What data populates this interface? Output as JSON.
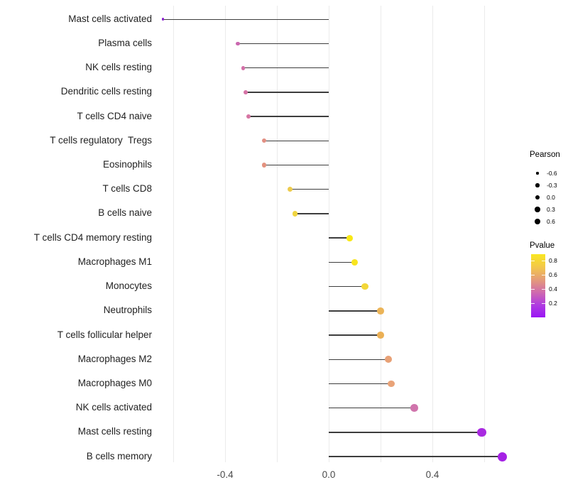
{
  "chart_data": {
    "type": "lollipop",
    "orientation": "horizontal",
    "title": "",
    "xlabel": "",
    "ylabel": "",
    "x_axis": {
      "lim": [
        -0.69,
        0.73
      ],
      "gridlines": [
        -0.6,
        -0.4,
        -0.2,
        0.0,
        0.2,
        0.4,
        0.6
      ],
      "tick_labels": [
        {
          "label": "-0.4",
          "value": -0.4
        },
        {
          "label": "0.0",
          "value": 0.0
        },
        {
          "label": "0.4",
          "value": 0.4
        }
      ]
    },
    "baseline_value": 0.0,
    "points": [
      {
        "label": "Mast cells activated",
        "pearson": -0.64,
        "color": "#8b22d1"
      },
      {
        "label": "Plasma cells",
        "pearson": -0.35,
        "color": "#ca68af"
      },
      {
        "label": "NK cells resting",
        "pearson": -0.33,
        "color": "#d36fa8"
      },
      {
        "label": "Dendritic cells resting",
        "pearson": -0.32,
        "color": "#d572a5"
      },
      {
        "label": "T cells CD4 naive",
        "pearson": -0.31,
        "color": "#d675a3"
      },
      {
        "label": "T cells regulatory  Tregs",
        "pearson": -0.25,
        "color": "#e28f83"
      },
      {
        "label": "Eosinophils",
        "pearson": -0.25,
        "color": "#e3927f"
      },
      {
        "label": "T cells CD8",
        "pearson": -0.15,
        "color": "#edcb4c"
      },
      {
        "label": "B cells naive",
        "pearson": -0.13,
        "color": "#f0d541"
      },
      {
        "label": "T cells CD4 memory resting",
        "pearson": 0.08,
        "color": "#f8e815"
      },
      {
        "label": "Macrophages M1",
        "pearson": 0.1,
        "color": "#f8e41e"
      },
      {
        "label": "Monocytes",
        "pearson": 0.14,
        "color": "#f3d738"
      },
      {
        "label": "Neutrophils",
        "pearson": 0.2,
        "color": "#ebb458"
      },
      {
        "label": "T cells follicular helper",
        "pearson": 0.2,
        "color": "#ebb055"
      },
      {
        "label": "Macrophages M2",
        "pearson": 0.23,
        "color": "#e8a176"
      },
      {
        "label": "Macrophages M0",
        "pearson": 0.24,
        "color": "#e9a378"
      },
      {
        "label": "NK cells activated",
        "pearson": 0.33,
        "color": "#d074ac"
      },
      {
        "label": "Mast cells resting",
        "pearson": 0.59,
        "color": "#a92ae1"
      },
      {
        "label": "B cells memory",
        "pearson": 0.67,
        "color": "#a521e5"
      }
    ],
    "legend_size": {
      "title": "Pearson",
      "entries": [
        {
          "label": "-0.6",
          "value": -0.6
        },
        {
          "label": "-0.3",
          "value": -0.3
        },
        {
          "label": "0.0",
          "value": 0.0
        },
        {
          "label": "0.3",
          "value": 0.3
        },
        {
          "label": "0.6",
          "value": 0.6
        }
      ],
      "dot_color": "#000000"
    },
    "legend_color": {
      "title": "Pvalue",
      "tick_labels": [
        "0.8",
        "0.6",
        "0.4",
        "0.2"
      ],
      "gradient_top_to_bottom": [
        "#f9e721",
        "#f3c84a",
        "#e59c77",
        "#d06bad",
        "#b03ce0",
        "#9a15f5"
      ]
    }
  }
}
